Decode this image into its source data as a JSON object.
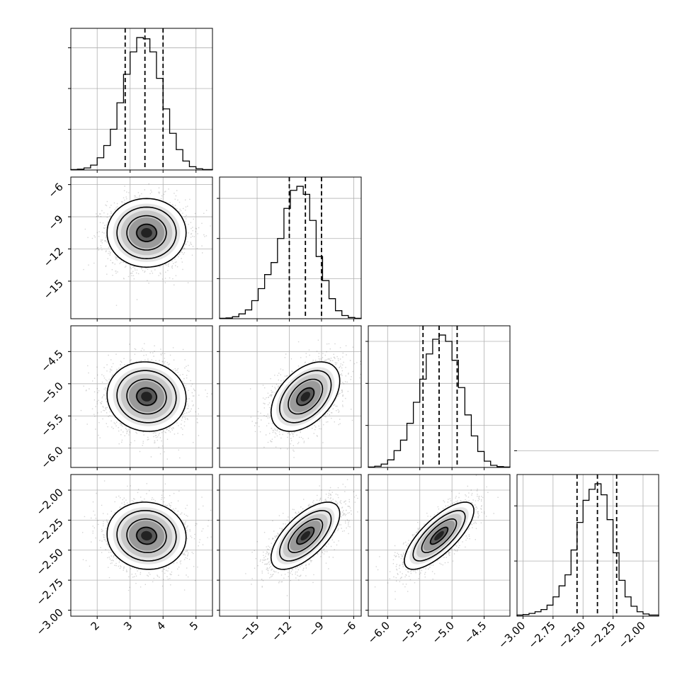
{
  "chart_data": {
    "type": "corner",
    "parameters": [
      "",
      "",
      "",
      ""
    ],
    "grid": true,
    "quantiles": [
      0.16,
      0.5,
      0.84
    ],
    "parameter_ranges": [
      [
        1.2,
        5.5
      ],
      [
        -18.5,
        -5.3
      ],
      [
        -6.3,
        -4.1
      ],
      [
        -3.05,
        -1.87
      ]
    ],
    "diagonal": [
      {
        "param": 0,
        "bins": [
          1.2,
          1.4,
          1.6,
          1.8,
          2.0,
          2.2,
          2.4,
          2.6,
          2.8,
          3.0,
          3.2,
          3.4,
          3.6,
          3.8,
          4.0,
          4.2,
          4.4,
          4.6,
          4.8,
          5.0,
          5.2,
          5.5
        ],
        "counts": [
          1,
          2,
          5,
          12,
          30,
          60,
          100,
          165,
          235,
          290,
          325,
          322,
          290,
          225,
          150,
          90,
          50,
          22,
          8,
          3,
          1
        ],
        "quantiles": [
          2.85,
          3.45,
          4.0
        ],
        "y_ticks": [
          100,
          200,
          300
        ]
      },
      {
        "param": 1,
        "bins": [
          -18.5,
          -17.9,
          -17.3,
          -16.7,
          -16.1,
          -15.5,
          -14.9,
          -14.3,
          -13.7,
          -13.1,
          -12.5,
          -11.9,
          -11.3,
          -10.7,
          -10.1,
          -9.5,
          -8.9,
          -8.3,
          -7.7,
          -7.1,
          -6.5,
          -5.9,
          -5.3
        ],
        "counts": [
          1,
          2,
          5,
          12,
          22,
          45,
          75,
          110,
          140,
          200,
          275,
          320,
          330,
          310,
          245,
          155,
          95,
          50,
          20,
          8,
          3,
          1
        ],
        "quantiles": [
          -12.0,
          -10.5,
          -9.0
        ],
        "y_ticks": [
          100,
          200,
          300
        ]
      },
      {
        "param": 2,
        "bins": [
          -6.3,
          -6.2,
          -6.1,
          -6.0,
          -5.9,
          -5.8,
          -5.7,
          -5.6,
          -5.5,
          -5.4,
          -5.3,
          -5.2,
          -5.1,
          -5.0,
          -4.9,
          -4.8,
          -4.7,
          -4.6,
          -4.5,
          -4.4,
          -4.3,
          -4.2,
          -4.1
        ],
        "counts": [
          1,
          3,
          8,
          18,
          40,
          65,
          105,
          155,
          210,
          270,
          305,
          315,
          300,
          255,
          190,
          125,
          75,
          38,
          15,
          5,
          2,
          1
        ],
        "quantiles": [
          -5.45,
          -5.2,
          -4.92
        ],
        "y_ticks": [
          100,
          200,
          300
        ]
      },
      {
        "param": 3,
        "bins": [
          -3.05,
          -3.0,
          -2.95,
          -2.9,
          -2.85,
          -2.8,
          -2.75,
          -2.7,
          -2.65,
          -2.6,
          -2.55,
          -2.5,
          -2.45,
          -2.4,
          -2.35,
          -2.3,
          -2.25,
          -2.2,
          -2.15,
          -2.1,
          -2.05,
          -2.0,
          -1.95,
          -1.87
        ],
        "counts": [
          2,
          3,
          5,
          8,
          12,
          20,
          35,
          55,
          75,
          120,
          170,
          210,
          230,
          240,
          220,
          175,
          115,
          65,
          35,
          18,
          8,
          4,
          2
        ],
        "quantiles": [
          -2.55,
          -2.38,
          -2.22
        ],
        "y_ticks": [
          100,
          200,
          300
        ]
      }
    ],
    "pairs": [
      {
        "x": 0,
        "y": 1,
        "mean": [
          3.5,
          -10.5
        ],
        "std": [
          0.6,
          1.6
        ],
        "rho": 0.0
      },
      {
        "x": 0,
        "y": 2,
        "mean": [
          3.5,
          -5.2
        ],
        "std": [
          0.6,
          0.27
        ],
        "rho": -0.05
      },
      {
        "x": 1,
        "y": 2,
        "mean": [
          -10.5,
          -5.2
        ],
        "std": [
          1.6,
          0.27
        ],
        "rho": 0.45
      },
      {
        "x": 0,
        "y": 3,
        "mean": [
          3.5,
          -2.38
        ],
        "std": [
          0.6,
          0.14
        ],
        "rho": -0.05
      },
      {
        "x": 1,
        "y": 3,
        "mean": [
          -10.5,
          -2.38
        ],
        "std": [
          1.6,
          0.14
        ],
        "rho": 0.65
      },
      {
        "x": 2,
        "y": 3,
        "mean": [
          -5.2,
          -2.38
        ],
        "std": [
          0.27,
          0.14
        ],
        "rho": 0.75
      }
    ],
    "x_tick_labels": [
      [
        "2",
        "3",
        "4",
        "5"
      ],
      [
        "−15",
        "−12",
        "−9",
        "−6"
      ],
      [
        "−6.0",
        "−5.5",
        "−5.0",
        "−4.5"
      ],
      [
        "−3.00",
        "−2.75",
        "−2.50",
        "−2.25",
        "−2.00"
      ]
    ],
    "x_tick_values": [
      [
        2,
        3,
        4,
        5
      ],
      [
        -15,
        -12,
        -9,
        -6
      ],
      [
        -6.0,
        -5.5,
        -5.0,
        -4.5
      ],
      [
        -3.0,
        -2.75,
        -2.5,
        -2.25,
        -2.0
      ]
    ],
    "y_tick_labels": [
      [],
      [
        "−6",
        "−9",
        "−12",
        "−15"
      ],
      [
        "−4.5",
        "−5.0",
        "−5.5",
        "−6.0"
      ],
      [
        "−2.00",
        "−2.25",
        "−2.50",
        "−2.75",
        "−3.00"
      ]
    ],
    "y_tick_values": [
      [],
      [
        -6,
        -9,
        -12,
        -15
      ],
      [
        -4.5,
        -5.0,
        -5.5,
        -6.0
      ],
      [
        -2.0,
        -2.25,
        -2.5,
        -2.75,
        -3.0
      ]
    ],
    "contour_levels_sigma": [
      0.5,
      1.0,
      1.5,
      2.0
    ]
  }
}
